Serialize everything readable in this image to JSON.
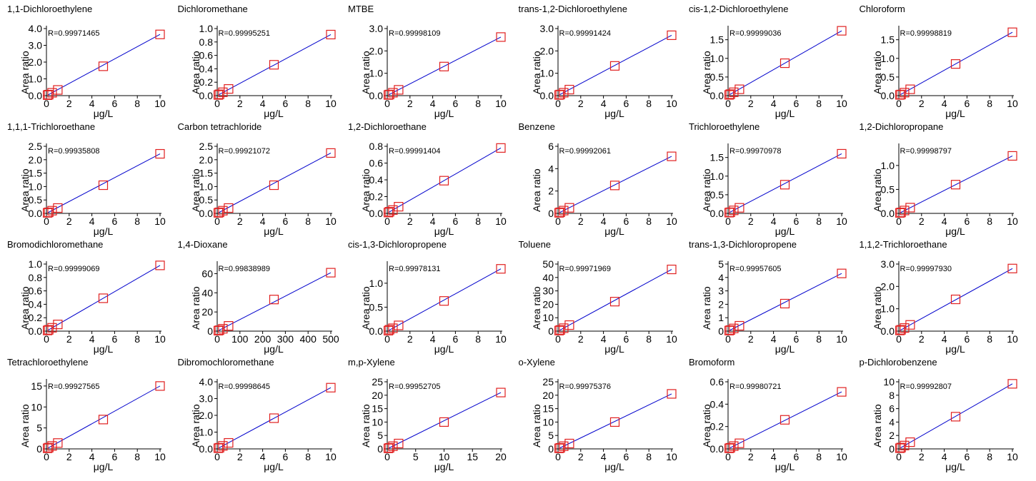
{
  "colors": {
    "fit_line": "#0000cc",
    "marker": "#e02020",
    "axis": "#000000"
  },
  "chart_data": [
    {
      "type": "scatter",
      "title": "1,1-Dichloroethylene",
      "r_label": "R=0.99971465",
      "xlabel": "μg/L",
      "ylabel": "Area ratio",
      "xlim": [
        0,
        10
      ],
      "ylim": [
        0,
        4
      ],
      "xticks": [
        0,
        2,
        4,
        6,
        8,
        10
      ],
      "yticks": [
        "0.0",
        "1.0",
        "2.0",
        "3.0",
        "4.0"
      ],
      "x": [
        0.1,
        0.2,
        0.5,
        1,
        5,
        10
      ],
      "y": [
        0.03,
        0.06,
        0.17,
        0.34,
        1.75,
        3.65
      ]
    },
    {
      "type": "scatter",
      "title": "Dichloromethane",
      "r_label": "R=0.99995251",
      "xlabel": "μg/L",
      "ylabel": "Area ratio",
      "xlim": [
        0,
        10
      ],
      "ylim": [
        0,
        1
      ],
      "xticks": [
        0,
        2,
        4,
        6,
        8,
        10
      ],
      "yticks": [
        "0.0",
        "0.2",
        "0.4",
        "0.6",
        "0.8",
        "1.0"
      ],
      "x": [
        0.1,
        0.2,
        0.5,
        1,
        5,
        10
      ],
      "y": [
        0.01,
        0.02,
        0.05,
        0.1,
        0.46,
        0.91
      ]
    },
    {
      "type": "scatter",
      "title": "MTBE",
      "r_label": "R=0.99998109",
      "xlabel": "μg/L",
      "ylabel": "Area ratio",
      "xlim": [
        0,
        10
      ],
      "ylim": [
        0,
        3
      ],
      "xticks": [
        0,
        2,
        4,
        6,
        8,
        10
      ],
      "yticks": [
        "0.0",
        "1.0",
        "2.0",
        "3.0"
      ],
      "x": [
        0.1,
        0.2,
        0.5,
        1,
        5,
        10
      ],
      "y": [
        0.03,
        0.05,
        0.13,
        0.26,
        1.3,
        2.62
      ]
    },
    {
      "type": "scatter",
      "title": "trans-1,2-Dichloroethylene",
      "r_label": "R=0.99991424",
      "xlabel": "μg/L",
      "ylabel": "Area ratio",
      "xlim": [
        0,
        10
      ],
      "ylim": [
        0,
        3
      ],
      "xticks": [
        0,
        2,
        4,
        6,
        8,
        10
      ],
      "yticks": [
        "0.0",
        "1.0",
        "2.0",
        "3.0"
      ],
      "x": [
        0.1,
        0.2,
        0.5,
        1,
        5,
        10
      ],
      "y": [
        0.03,
        0.05,
        0.13,
        0.27,
        1.33,
        2.7
      ]
    },
    {
      "type": "scatter",
      "title": "cis-1,2-Dichloroethylene",
      "r_label": "R=0.99999036",
      "xlabel": "μg/L",
      "ylabel": "Area ratio",
      "xlim": [
        0,
        10
      ],
      "ylim": [
        0,
        1.8
      ],
      "xticks": [
        0,
        2,
        4,
        6,
        8,
        10
      ],
      "yticks": [
        "0.0",
        "0.5",
        "1.0",
        "1.5"
      ],
      "x": [
        0.1,
        0.2,
        0.5,
        1,
        5,
        10
      ],
      "y": [
        0.02,
        0.04,
        0.09,
        0.17,
        0.87,
        1.74
      ]
    },
    {
      "type": "scatter",
      "title": "Chloroform",
      "r_label": "R=0.99998819",
      "xlabel": "μg/L",
      "ylabel": "Area ratio",
      "xlim": [
        0,
        10
      ],
      "ylim": [
        0,
        1.8
      ],
      "xticks": [
        0,
        2,
        4,
        6,
        8,
        10
      ],
      "yticks": [
        "0.0",
        "0.5",
        "1.0",
        "1.5"
      ],
      "x": [
        0.1,
        0.2,
        0.5,
        1,
        5,
        10
      ],
      "y": [
        0.02,
        0.03,
        0.08,
        0.17,
        0.85,
        1.7
      ]
    },
    {
      "type": "scatter",
      "title": "1,1,1-Trichloroethane",
      "r_label": "R=0.99935808",
      "xlabel": "μg/L",
      "ylabel": "Area ratio",
      "xlim": [
        0,
        10
      ],
      "ylim": [
        0,
        2.5
      ],
      "xticks": [
        0,
        2,
        4,
        6,
        8,
        10
      ],
      "yticks": [
        "0.0",
        "0.5",
        "1.0",
        "1.5",
        "2.0",
        "2.5"
      ],
      "x": [
        0.1,
        0.2,
        0.5,
        1,
        5,
        10
      ],
      "y": [
        0.02,
        0.04,
        0.1,
        0.2,
        1.05,
        2.22
      ]
    },
    {
      "type": "scatter",
      "title": "Carbon tetrachloride",
      "r_label": "R=0.99921072",
      "xlabel": "μg/L",
      "ylabel": "Area ratio",
      "xlim": [
        0,
        10
      ],
      "ylim": [
        0,
        2.5
      ],
      "xticks": [
        0,
        2,
        4,
        6,
        8,
        10
      ],
      "yticks": [
        "0.0",
        "0.5",
        "1.0",
        "1.5",
        "2.0",
        "2.5"
      ],
      "x": [
        0.1,
        0.2,
        0.5,
        1,
        5,
        10
      ],
      "y": [
        0.02,
        0.04,
        0.1,
        0.2,
        1.05,
        2.25
      ]
    },
    {
      "type": "scatter",
      "title": "1,2-Dichloroethane",
      "r_label": "R=0.99991404",
      "xlabel": "μg/L",
      "ylabel": "Area ratio",
      "xlim": [
        0,
        10
      ],
      "ylim": [
        0,
        0.8
      ],
      "xticks": [
        0,
        2,
        4,
        6,
        8,
        10
      ],
      "yticks": [
        "0.0",
        "0.2",
        "0.4",
        "0.6",
        "0.8"
      ],
      "x": [
        0.1,
        0.2,
        0.5,
        1,
        5,
        10
      ],
      "y": [
        0.01,
        0.02,
        0.04,
        0.08,
        0.39,
        0.78
      ]
    },
    {
      "type": "scatter",
      "title": "Benzene",
      "r_label": "R=0.99992061",
      "xlabel": "μg/L",
      "ylabel": "Area ratio",
      "xlim": [
        0,
        10
      ],
      "ylim": [
        0,
        6
      ],
      "xticks": [
        0,
        2,
        4,
        6,
        8,
        10
      ],
      "yticks": [
        "0",
        "2",
        "4",
        "6"
      ],
      "x": [
        0.1,
        0.2,
        0.5,
        1,
        5,
        10
      ],
      "y": [
        0.05,
        0.1,
        0.25,
        0.5,
        2.5,
        5.1
      ]
    },
    {
      "type": "scatter",
      "title": "Trichloroethylene",
      "r_label": "R=0.99970978",
      "xlabel": "μg/L",
      "ylabel": "Area ratio",
      "xlim": [
        0,
        10
      ],
      "ylim": [
        0,
        1.8
      ],
      "xticks": [
        0,
        2,
        4,
        6,
        8,
        10
      ],
      "yticks": [
        "0.0",
        "0.5",
        "1.0",
        "1.5"
      ],
      "x": [
        0.1,
        0.2,
        0.5,
        1,
        5,
        10
      ],
      "y": [
        0.02,
        0.03,
        0.08,
        0.15,
        0.77,
        1.6
      ]
    },
    {
      "type": "scatter",
      "title": "1,2-Dichloropropane",
      "r_label": "R=0.99998797",
      "xlabel": "μg/L",
      "ylabel": "Area ratio",
      "xlim": [
        0,
        10
      ],
      "ylim": [
        0,
        1.4
      ],
      "xticks": [
        0,
        2,
        4,
        6,
        8,
        10
      ],
      "yticks": [
        "0.0",
        "0.5",
        "1.0"
      ],
      "x": [
        0.1,
        0.2,
        0.5,
        1,
        5,
        10
      ],
      "y": [
        0.01,
        0.02,
        0.06,
        0.12,
        0.6,
        1.2
      ]
    },
    {
      "type": "scatter",
      "title": "Bromodichloromethane",
      "r_label": "R=0.99999069",
      "xlabel": "μg/L",
      "ylabel": "Area ratio",
      "xlim": [
        0,
        10
      ],
      "ylim": [
        0,
        1
      ],
      "xticks": [
        0,
        2,
        4,
        6,
        8,
        10
      ],
      "yticks": [
        "0.0",
        "0.2",
        "0.4",
        "0.6",
        "0.8",
        "1.0"
      ],
      "x": [
        0.1,
        0.2,
        0.5,
        1,
        5,
        10
      ],
      "y": [
        0.01,
        0.02,
        0.05,
        0.1,
        0.49,
        0.98
      ]
    },
    {
      "type": "scatter",
      "title": "1,4-Dioxane",
      "r_label": "R=0.99838989",
      "xlabel": "μg/L",
      "ylabel": "Area ratio",
      "xlim": [
        0,
        500
      ],
      "ylim": [
        0,
        70
      ],
      "xticks": [
        0,
        100,
        200,
        300,
        400,
        500
      ],
      "yticks": [
        "0",
        "20",
        "40",
        "60"
      ],
      "x": [
        5,
        10,
        25,
        50,
        250,
        500
      ],
      "y": [
        0.5,
        1,
        2.5,
        5.5,
        33,
        61
      ]
    },
    {
      "type": "scatter",
      "title": "cis-1,3-Dichloropropene",
      "r_label": "R=0.99978131",
      "xlabel": "μg/L",
      "ylabel": "Area ratio",
      "xlim": [
        0,
        10
      ],
      "ylim": [
        0,
        1.4
      ],
      "xticks": [
        0,
        2,
        4,
        6,
        8,
        10
      ],
      "yticks": [
        "0.0",
        "0.5",
        "1.0"
      ],
      "x": [
        0.1,
        0.2,
        0.5,
        1,
        5,
        10
      ],
      "y": [
        0.01,
        0.03,
        0.06,
        0.12,
        0.63,
        1.3
      ]
    },
    {
      "type": "scatter",
      "title": "Toluene",
      "r_label": "R=0.99971969",
      "xlabel": "μg/L",
      "ylabel": "Area ratio",
      "xlim": [
        0,
        10
      ],
      "ylim": [
        0,
        50
      ],
      "xticks": [
        0,
        2,
        4,
        6,
        8,
        10
      ],
      "yticks": [
        "0",
        "10",
        "20",
        "30",
        "40",
        "50"
      ],
      "x": [
        0.1,
        0.2,
        0.5,
        1,
        5,
        10
      ],
      "y": [
        0.4,
        0.9,
        2.2,
        4.5,
        22,
        46
      ]
    },
    {
      "type": "scatter",
      "title": "trans-1,3-Dichloropropene",
      "r_label": "R=0.99957605",
      "xlabel": "μg/L",
      "ylabel": "Area ratio",
      "xlim": [
        0,
        10
      ],
      "ylim": [
        0,
        5
      ],
      "xticks": [
        0,
        2,
        4,
        6,
        8,
        10
      ],
      "yticks": [
        "0",
        "1",
        "2",
        "3",
        "4",
        "5"
      ],
      "x": [
        0.1,
        0.2,
        0.5,
        1,
        5,
        10
      ],
      "y": [
        0.04,
        0.08,
        0.2,
        0.4,
        2.05,
        4.3
      ]
    },
    {
      "type": "scatter",
      "title": "1,1,2-Trichloroethane",
      "r_label": "R=0.99997930",
      "xlabel": "μg/L",
      "ylabel": "Area ratio",
      "xlim": [
        0,
        10
      ],
      "ylim": [
        0,
        3
      ],
      "xticks": [
        0,
        2,
        4,
        6,
        8,
        10
      ],
      "yticks": [
        "0.0",
        "1.0",
        "2.0",
        "3.0"
      ],
      "x": [
        0.1,
        0.2,
        0.5,
        1,
        5,
        10
      ],
      "y": [
        0.03,
        0.06,
        0.14,
        0.28,
        1.42,
        2.8
      ]
    },
    {
      "type": "scatter",
      "title": "Tetrachloroethylene",
      "r_label": "R=0.99927565",
      "xlabel": "μg/L",
      "ylabel": "Area ratio",
      "xlim": [
        0,
        10
      ],
      "ylim": [
        0,
        16
      ],
      "xticks": [
        0,
        2,
        4,
        6,
        8,
        10
      ],
      "yticks": [
        "0",
        "5",
        "10",
        "15"
      ],
      "x": [
        0.1,
        0.2,
        0.5,
        1,
        5,
        10
      ],
      "y": [
        0.14,
        0.3,
        0.7,
        1.4,
        7,
        15
      ]
    },
    {
      "type": "scatter",
      "title": "Dibromochloromethane",
      "r_label": "R=0.99998645",
      "xlabel": "μg/L",
      "ylabel": "Area ratio",
      "xlim": [
        0,
        10
      ],
      "ylim": [
        0,
        4
      ],
      "xticks": [
        0,
        2,
        4,
        6,
        8,
        10
      ],
      "yticks": [
        "0.0",
        "1.0",
        "2.0",
        "3.0",
        "4.0"
      ],
      "x": [
        0.1,
        0.2,
        0.5,
        1,
        5,
        10
      ],
      "y": [
        0.04,
        0.07,
        0.18,
        0.36,
        1.83,
        3.65
      ]
    },
    {
      "type": "scatter",
      "title": "m,p-Xylene",
      "r_label": "R=0.99952705",
      "xlabel": "μg/L",
      "ylabel": "Area ratio",
      "xlim": [
        0,
        20
      ],
      "ylim": [
        0,
        25
      ],
      "xticks": [
        0,
        5,
        10,
        15,
        20
      ],
      "yticks": [
        "0",
        "5",
        "10",
        "15",
        "20",
        "25"
      ],
      "x": [
        0.2,
        0.4,
        1,
        2,
        10,
        20
      ],
      "y": [
        0.2,
        0.4,
        1,
        2,
        10,
        21
      ]
    },
    {
      "type": "scatter",
      "title": "o-Xylene",
      "r_label": "R=0.99975376",
      "xlabel": "μg/L",
      "ylabel": "Area ratio",
      "xlim": [
        0,
        10
      ],
      "ylim": [
        0,
        25
      ],
      "xticks": [
        0,
        2,
        4,
        6,
        8,
        10
      ],
      "yticks": [
        "0",
        "5",
        "10",
        "15",
        "20",
        "25"
      ],
      "x": [
        0.1,
        0.2,
        0.5,
        1,
        5,
        10
      ],
      "y": [
        0.2,
        0.4,
        1,
        2,
        10,
        20.5
      ]
    },
    {
      "type": "scatter",
      "title": "Bromoform",
      "r_label": "R=0.99980721",
      "xlabel": "μg/L",
      "ylabel": "Area ratio",
      "xlim": [
        0,
        10
      ],
      "ylim": [
        0,
        0.6
      ],
      "xticks": [
        0,
        2,
        4,
        6,
        8,
        10
      ],
      "yticks": [
        "0.0",
        "0.2",
        "0.4",
        "0.6"
      ],
      "x": [
        0.1,
        0.2,
        0.5,
        1,
        5,
        10
      ],
      "y": [
        0.005,
        0.01,
        0.025,
        0.05,
        0.26,
        0.51
      ]
    },
    {
      "type": "scatter",
      "title": "p-Dichlorobenzene",
      "r_label": "R=0.99992807",
      "xlabel": "μg/L",
      "ylabel": "Area ratio",
      "xlim": [
        0,
        10
      ],
      "ylim": [
        0,
        10
      ],
      "xticks": [
        0,
        2,
        4,
        6,
        8,
        10
      ],
      "yticks": [
        "0",
        "2",
        "4",
        "6",
        "8",
        "10"
      ],
      "x": [
        0.1,
        0.2,
        0.5,
        1,
        5,
        10
      ],
      "y": [
        0.1,
        0.2,
        0.5,
        1,
        4.8,
        9.7
      ]
    }
  ]
}
